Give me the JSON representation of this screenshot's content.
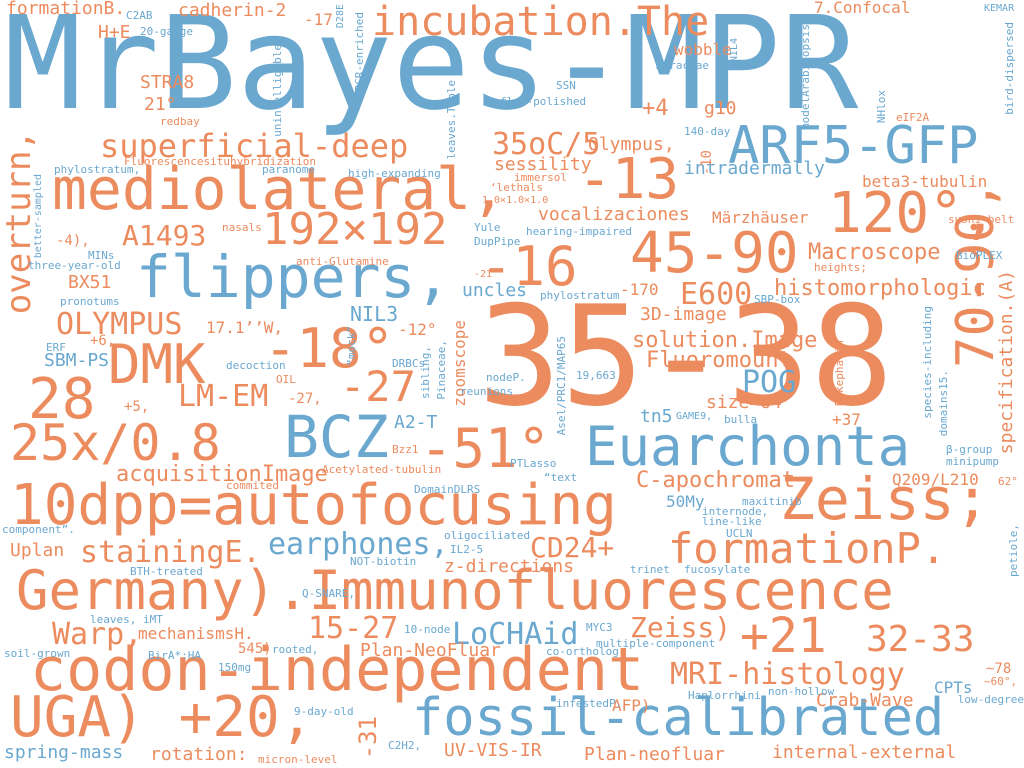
{
  "colors": {
    "orange": "#ec8b5e",
    "blue": "#6aa8d0",
    "background": "#ffffff"
  },
  "words": {
    "mrbayes": "MrBayes-MPR",
    "w3538": "35-38",
    "codon": "codon-independent",
    "germany": "Germany).Immunofluorescence",
    "autofocusing": "10dpp=autofocusing",
    "uga": "UGA) +20,",
    "fossil": "fossil-calibrated",
    "euarchonta": "Euarchonta",
    "mediolateral": "mediolateral,",
    "m13": "-13",
    "arf5": "ARF5-GFP",
    "flippers": "flippers,",
    "incubation": "incubation.The",
    "bcz": "BCZ",
    "zeiss_semi": "Zeiss;",
    "formationp": "formationP.",
    "w7090": "70-90,",
    "overturn": "overturn,",
    "dmk": "DMK",
    "m18": "-18°",
    "w120": "120°,",
    "w4590": "45-90",
    "m16": "-16",
    "x192": "192×192",
    "x25": "25x/0.8",
    "m51": "-51°",
    "w28": "28",
    "m27": "-27",
    "lmem": "LM-EM",
    "superficial": "superficial-deep",
    "p21": "+21",
    "w3233": "32-33",
    "codon_sub": "stainingE.",
    "earphones": "earphones,",
    "cd24": "CD24+",
    "warp": "Warp,",
    "w1527": "15-27",
    "lochaid": "LoCHAid",
    "zeiss_paren": "Zeiss)",
    "mri": "MRI-histology",
    "olympus_caps": "OLYMPUS",
    "a1493": "A1493",
    "e600": "E600",
    "oso": "35oC/5",
    "pog": "POG",
    "histomorph": "histomorphologic",
    "macroscope": "Macroscope",
    "c_apo": "C-apochromat",
    "acq": "acquisitionImage",
    "solution": "solution.Image",
    "fluoromount": "Fluoromount",
    "threed": "3D-image",
    "size64": "size=64",
    "nil3": "NIL3",
    "a2t": "A2-T",
    "crab": "Crab-Wave",
    "planneo": "Plan-NeoFluar",
    "planneo2": "Plan-neofluar",
    "uvvis": "UV-VIS-IR",
    "internal": "internal-external",
    "rotation": "rotation:",
    "springmass": "spring-mass",
    "uplan": "Uplan",
    "zdir": "z-directions",
    "mechanisms": "mechanismsH.",
    "uncles": "uncles",
    "bx51": "BX51",
    "vocal": "vocalizaciones",
    "sessility": "sessility",
    "olympus2": "Olympus,",
    "cadherin": "cadherin-2",
    "formationb": "formationB.",
    "intradermally": "intradermally",
    "beta3": "beta3-tubulin",
    "marz": "Märzhäuser",
    "wobble": "wobble",
    "confocal": "7.Confocal",
    "g10": "g10",
    "p4": "+4",
    "m170": "-170",
    "stra8": "STRA8",
    "deg21": "21°",
    "he": "H+E",
    "m17": "-17",
    "spec": "specification.(A)",
    "sbmps": "SBM-PS",
    "deg171": "17.1’’W,",
    "m12": "-12°",
    "zoomscope": "zoomscope",
    "tn5": "tn5",
    "p37": "+37",
    "q209": "Q209/L210",
    "my50": "50My",
    "cpts": "CPTs",
    "afp": "AFP)",
    "m31": "-31",
    "p6": "+6,",
    "p5": "+5,",
    "m27b": "-27,",
    "m4": "-4),",
    "m78": "~78",
    "m10": "-10",
    "c2ab": "C2AB",
    "g20": "20-gauge",
    "redbay": "redbay",
    "fluor_hyb": "Fluorescencesituhybridization",
    "phylo": "phylostratum,",
    "paranome": "paranome",
    "highexp": "high-expanding",
    "immersol": "immersol",
    "lethals": "‘lethals",
    "x1": "1.0×1.0×1.0",
    "yule": "Yule",
    "hearing": "hearing-impaired",
    "duppipe": "DupPipe",
    "nasals": "nasals",
    "mins": "MINs",
    "threeyear": "three-year-old",
    "antiglut": "anti-Glutamine",
    "m21": "-21",
    "phylo2": "phylostratum",
    "pronotums": "pronotums",
    "erf": "ERF",
    "decoction": "decoction",
    "oil": "OIL",
    "mock": "“mock”",
    "drbcs": "DRBCs",
    "sibling": "sibling,",
    "pinaceae": "Pinaceae,",
    "nodep": "nodeP.",
    "reunions": "reunions",
    "asel": "Asel/PRC1/MAP65",
    "n19663": "19,663",
    "game9": "GAME9,",
    "bulla": "bulla",
    "enk": "Enkephalin",
    "species": "species-including",
    "domains": "domains15.",
    "bgroup": "β-group",
    "minipump": "minipump",
    "sushi": "sushi-belt",
    "bioplex": "BioPLEX",
    "heights": "heights;",
    "sbpbox": "SBP-box",
    "kemar": "KEMAR",
    "birddisp": "bird-dispersed",
    "nil4": "NIL4",
    "model": "modelArabidopsis",
    "nhlox": "NHlox",
    "eif2a": "eIF2A",
    "d140": "140-day",
    "moraceae": "Moraceae",
    "ssn": "SSN",
    "flatpol": "flat-polished",
    "leaves_table": "leaves.Table",
    "unintell": "unintelligible",
    "d28e": "D28E",
    "pcr": "PCR-enriched",
    "bettersamp": "better-sampled",
    "component": "component”.",
    "bthtreated": "BTH-treated",
    "qsnare": "Q-SNARE,",
    "leaves_imt": "leaves, iMT",
    "soilgrown": "soil-grown",
    "bira": "BirA*:HA",
    "mg150": "150mg",
    "rooted": "rooted,",
    "p545": "545)",
    "node10": "10-node",
    "myc3": "MYC3",
    "coortho": "co-ortholog",
    "multicomp": "multiple-component",
    "infested": "infestedP.",
    "haplo": "Haplorrhini",
    "nonhollow": "non-hollow",
    "lowdeg": "low-degree",
    "deg60": "~60°,",
    "petiole": "petiole,",
    "day9": "9-day-old",
    "c2h2": "C2H2,",
    "micron": "micron-level",
    "notbiotin": "NOT-biotin",
    "il25": "IL2-5",
    "oligo": "oligociliated",
    "trinet": "trinet",
    "fucosylate": "fucosylate",
    "maxitinib": "maxitinib",
    "internode": "internode,",
    "lineike": "line-like",
    "ucln": "UCLN",
    "deg62": "62°",
    "domaindlrs": "DomainDLRS",
    "text": "“text",
    "ptlasso": "PTLasso",
    "commited": "commited",
    "acetyl": "Acetylated-tubulin",
    "bzz1": "Bzz1"
  }
}
